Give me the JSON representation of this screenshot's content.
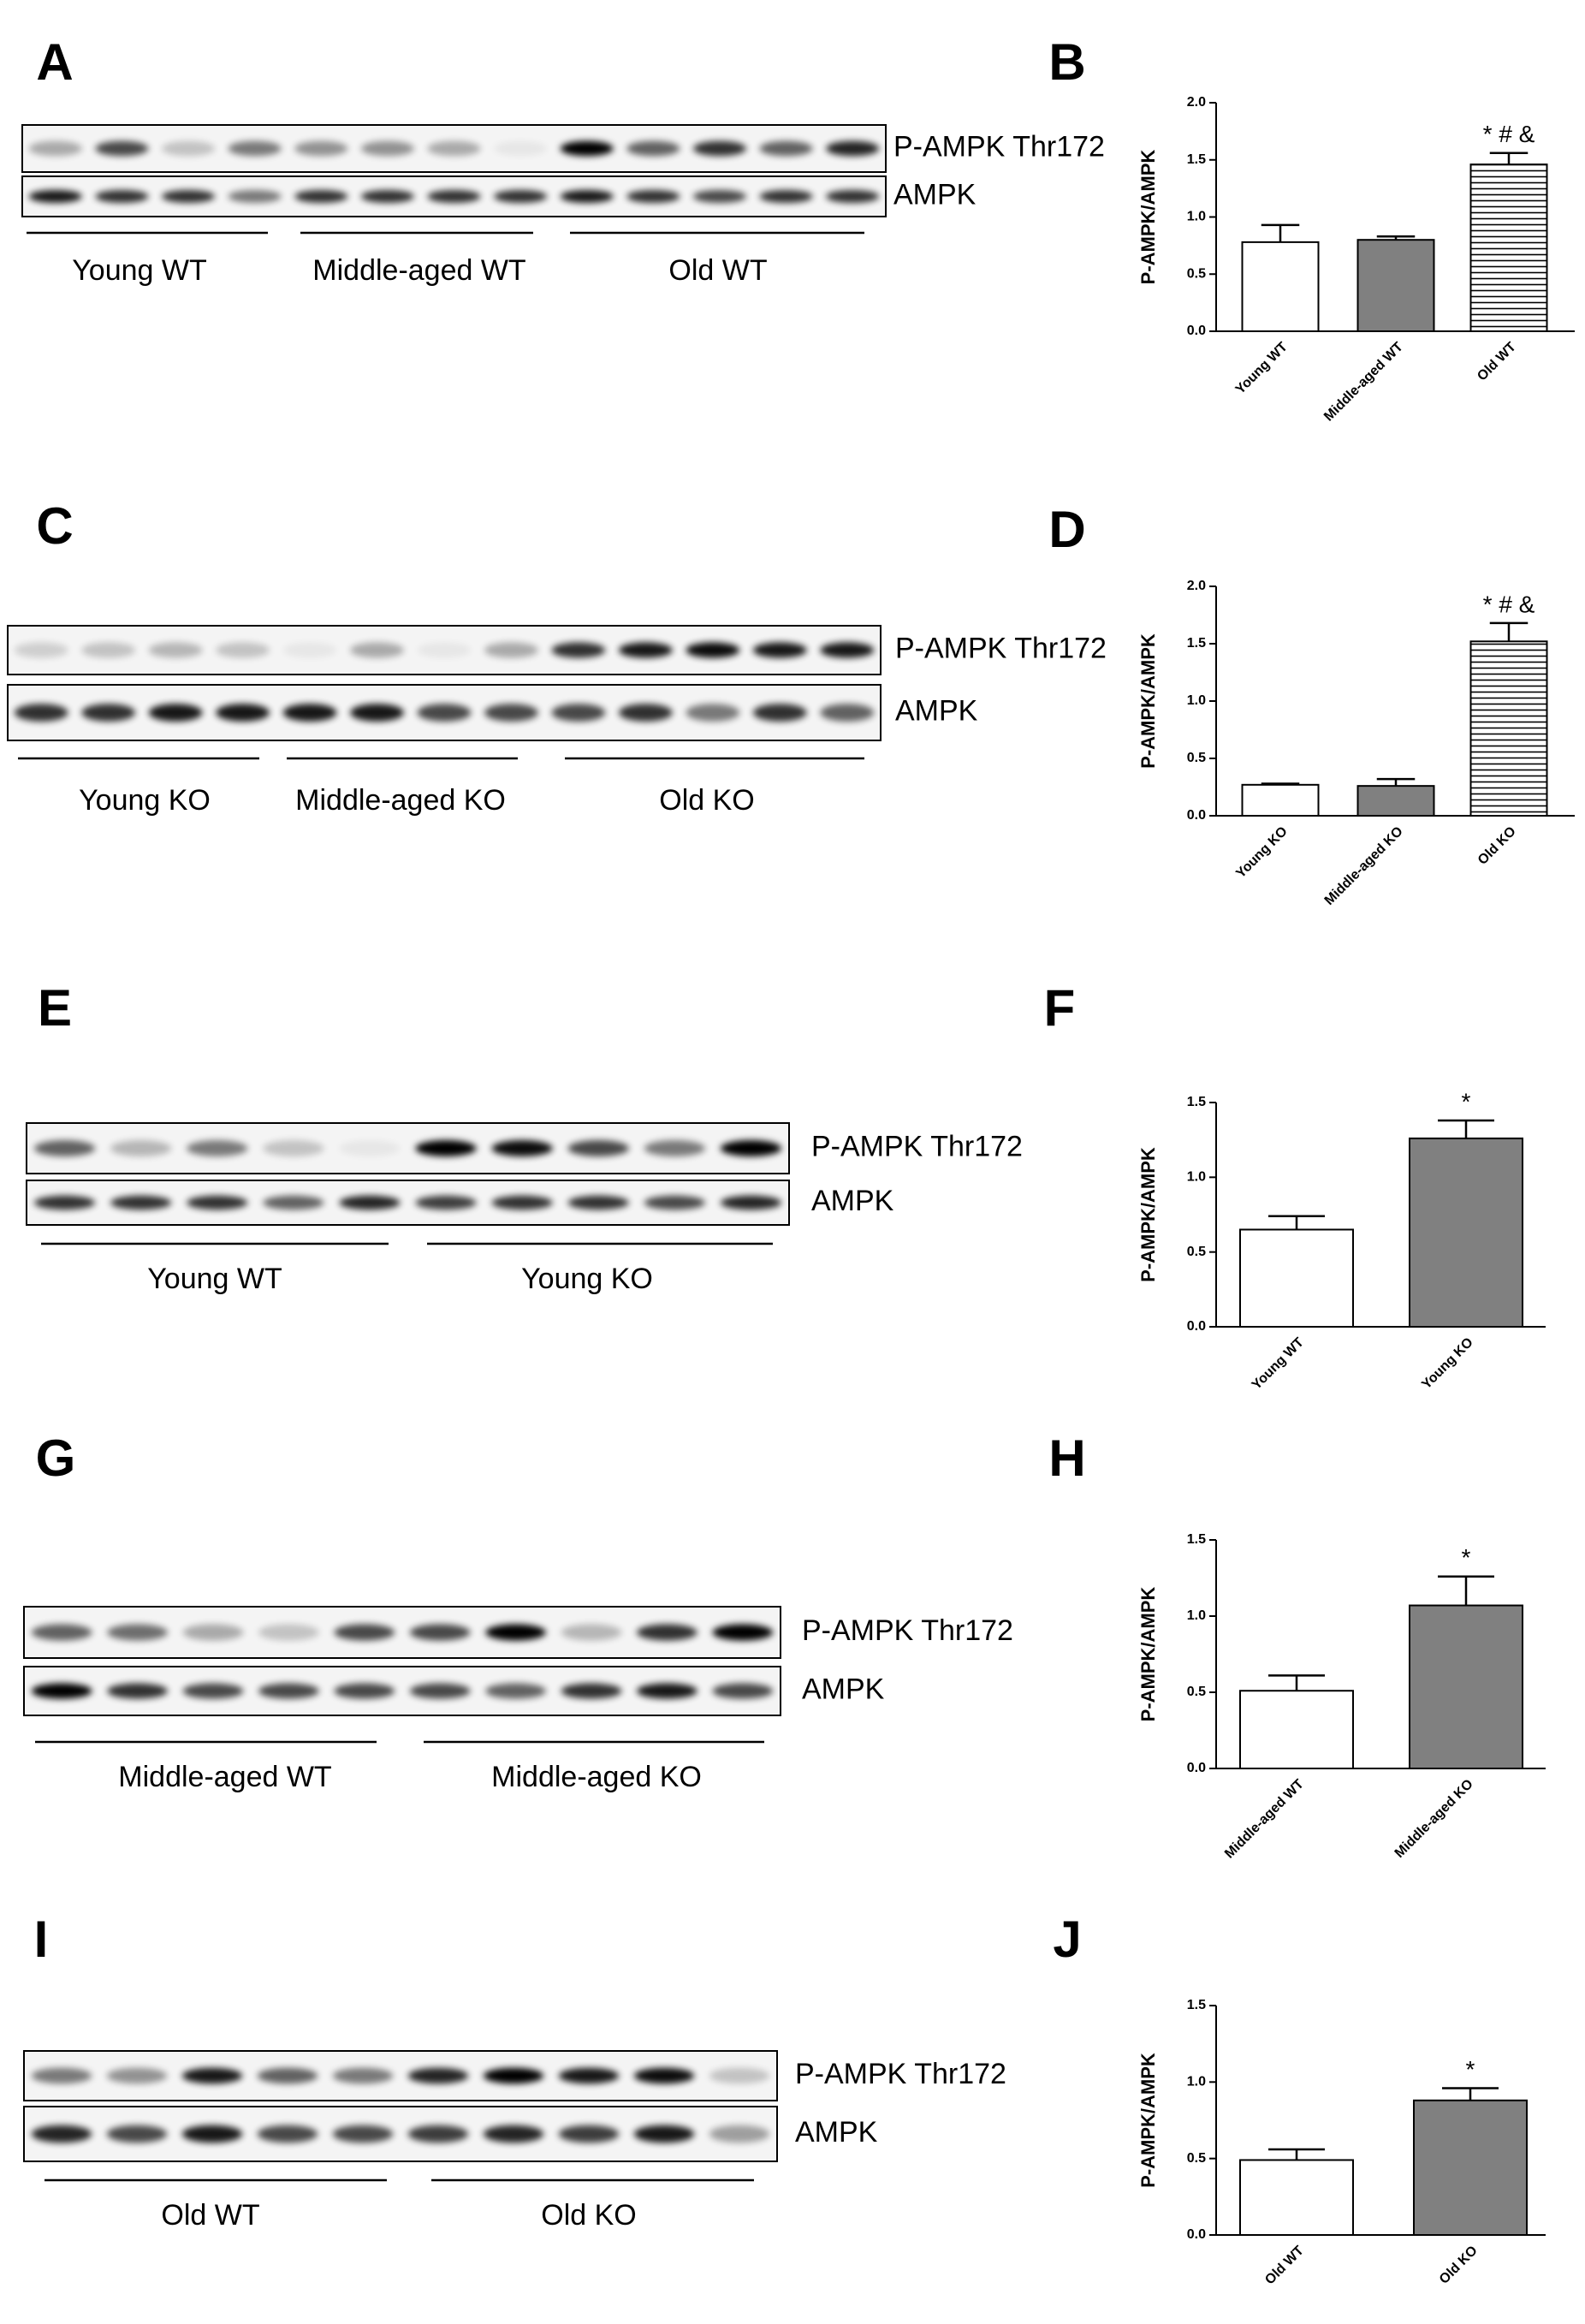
{
  "blots": [
    {
      "panel": "A",
      "rows": [
        "P-AMPK Thr172",
        "AMPK"
      ],
      "groups": [
        "Young WT",
        "Middle-aged WT",
        "Old WT"
      ]
    },
    {
      "panel": "C",
      "rows": [
        "P-AMPK Thr172",
        "AMPK"
      ],
      "groups": [
        "Young KO",
        "Middle-aged KO",
        "Old KO"
      ]
    },
    {
      "panel": "E",
      "rows": [
        "P-AMPK Thr172",
        "AMPK"
      ],
      "groups": [
        "Young WT",
        "Young KO"
      ]
    },
    {
      "panel": "G",
      "rows": [
        "P-AMPK Thr172",
        "AMPK"
      ],
      "groups": [
        "Middle-aged WT",
        "Middle-aged KO"
      ]
    },
    {
      "panel": "I",
      "rows": [
        "P-AMPK Thr172",
        "AMPK"
      ],
      "groups": [
        "Old WT",
        "Old KO"
      ]
    }
  ],
  "chart_data": [
    {
      "type": "bar",
      "panel": "B",
      "ylabel": "P-AMPK/AMPK",
      "categories": [
        "Young WT",
        "Middle-aged WT",
        "Old WT"
      ],
      "values": [
        0.78,
        0.8,
        1.46
      ],
      "errors": [
        0.15,
        0.03,
        0.1
      ],
      "colors": [
        "#ffffff",
        "#808080",
        "#ffffff"
      ],
      "hatched": [
        false,
        false,
        true
      ],
      "annotation": "* # &",
      "ylim": [
        0,
        2
      ],
      "yticks": [
        {
          "value": 0,
          "label": "0.0"
        },
        0.5,
        {
          "value": 1,
          "label": "1.0"
        },
        1.5,
        {
          "value": 2,
          "label": "2.0"
        }
      ]
    },
    {
      "type": "bar",
      "panel": "D",
      "ylabel": "P-AMPK/AMPK",
      "categories": [
        "Young KO",
        "Middle-aged KO",
        "Old KO"
      ],
      "values": [
        0.27,
        0.26,
        1.52
      ],
      "errors": [
        0.01,
        0.06,
        0.16
      ],
      "colors": [
        "#ffffff",
        "#808080",
        "#ffffff"
      ],
      "hatched": [
        false,
        false,
        true
      ],
      "annotation": "* # &",
      "ylim": [
        0,
        2
      ],
      "yticks": [
        {
          "value": 0,
          "label": "0.0"
        },
        0.5,
        {
          "value": 1,
          "label": "1.0"
        },
        1.5,
        {
          "value": 2,
          "label": "2.0"
        }
      ]
    },
    {
      "type": "bar",
      "panel": "F",
      "ylabel": "P-AMPK/AMPK",
      "categories": [
        "Young WT",
        "Young KO"
      ],
      "values": [
        0.65,
        1.26
      ],
      "errors": [
        0.09,
        0.12
      ],
      "colors": [
        "#ffffff",
        "#808080"
      ],
      "hatched": [
        false,
        false
      ],
      "annotation": "*",
      "ylim": [
        0,
        1.5
      ],
      "yticks": [
        {
          "value": 0,
          "label": "0.0"
        },
        0.5,
        {
          "value": 1,
          "label": "1.0"
        },
        1.5
      ]
    },
    {
      "type": "bar",
      "panel": "H",
      "ylabel": "P-AMPK/AMPK",
      "categories": [
        "Middle-aged WT",
        "Middle-aged KO"
      ],
      "values": [
        0.51,
        1.07
      ],
      "errors": [
        0.1,
        0.19
      ],
      "colors": [
        "#ffffff",
        "#808080"
      ],
      "hatched": [
        false,
        false
      ],
      "annotation": "*",
      "ylim": [
        0,
        1.5
      ],
      "yticks": [
        {
          "value": 0,
          "label": "0.0"
        },
        0.5,
        {
          "value": 1,
          "label": "1.0"
        },
        1.5
      ]
    },
    {
      "type": "bar",
      "panel": "J",
      "ylabel": "P-AMPK/AMPK",
      "categories": [
        "Old WT",
        "Old KO"
      ],
      "values": [
        0.49,
        0.88
      ],
      "errors": [
        0.07,
        0.08
      ],
      "colors": [
        "#ffffff",
        "#808080"
      ],
      "hatched": [
        false,
        false
      ],
      "annotation": "*",
      "ylim": [
        0,
        1.5
      ],
      "yticks": [
        {
          "value": 0,
          "label": "0.0"
        },
        0.5,
        {
          "value": 1,
          "label": "1.0"
        },
        1.5
      ]
    }
  ]
}
